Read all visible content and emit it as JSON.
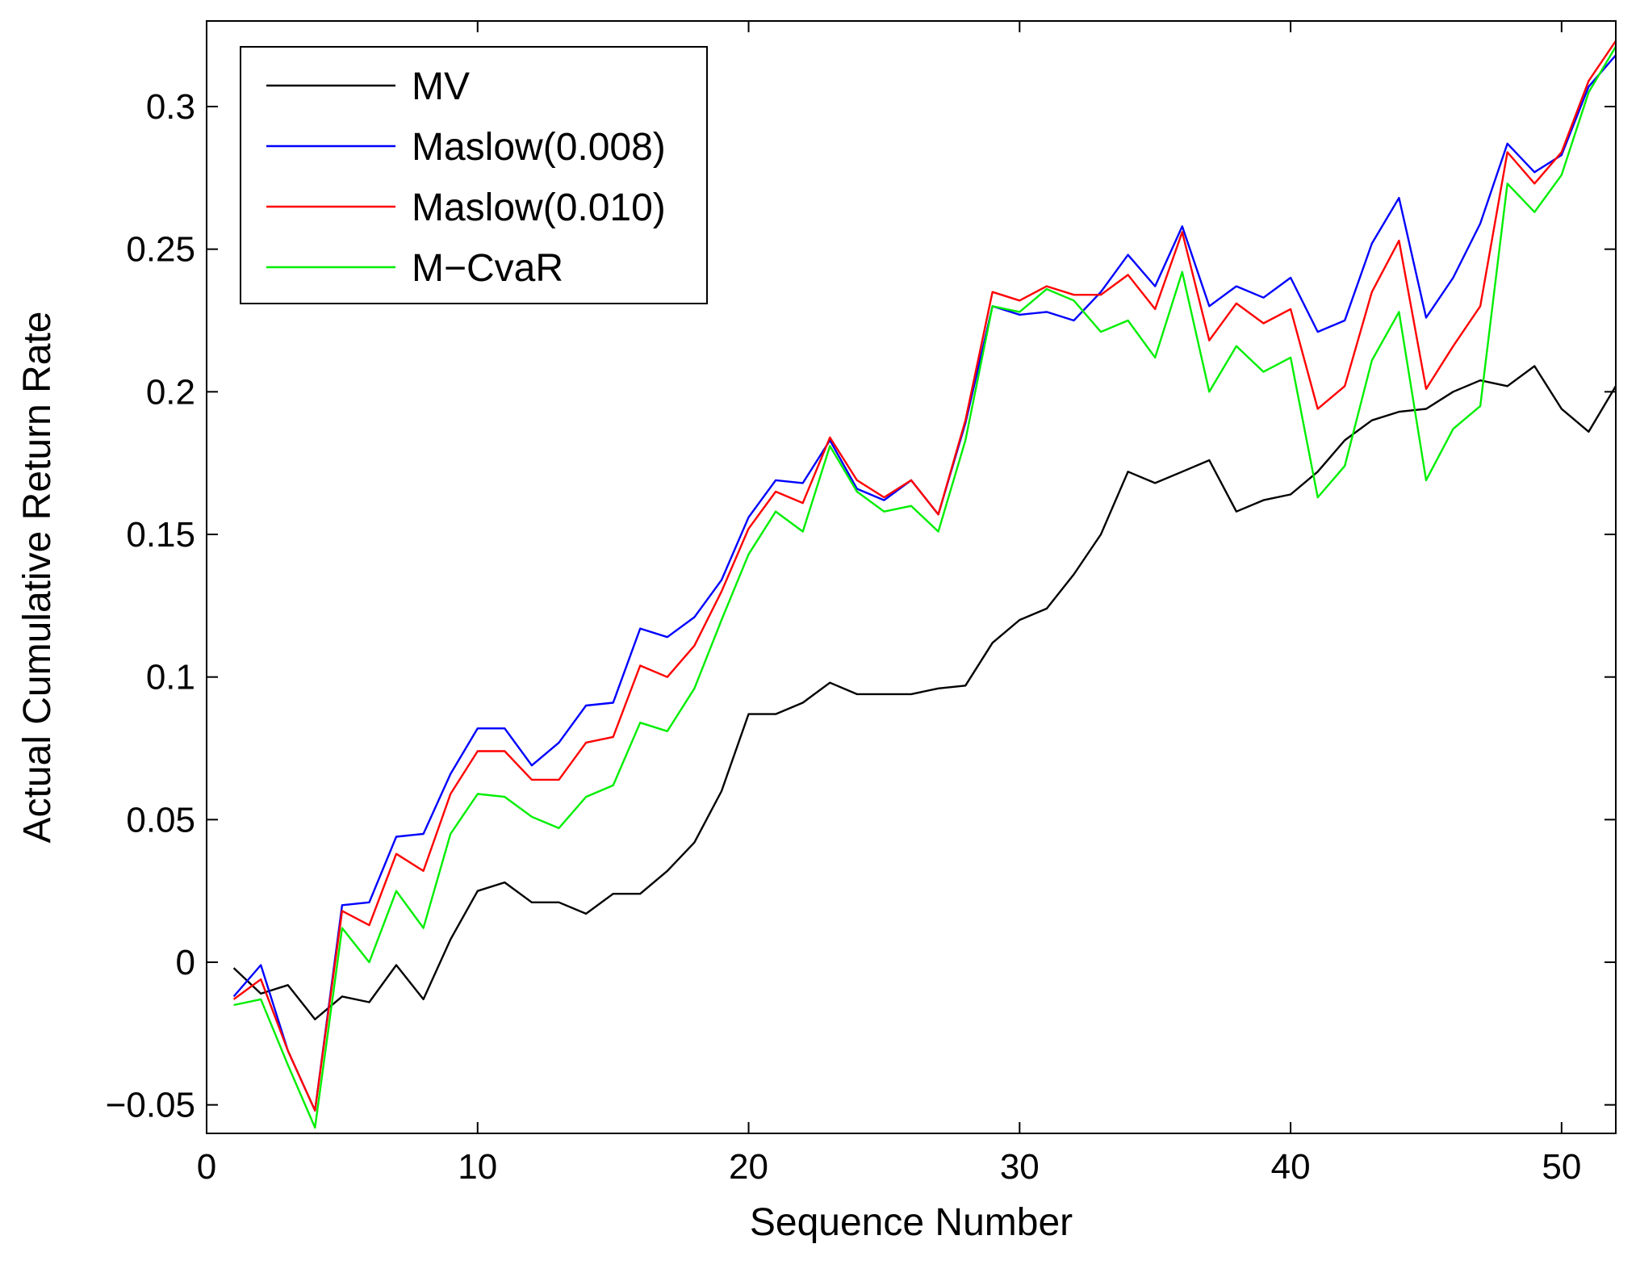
{
  "chart_data": {
    "type": "line",
    "title": "",
    "xlabel": "Sequence Number",
    "ylabel": "Actual Cumulative Return Rate",
    "xlim": [
      0,
      52
    ],
    "ylim": [
      -0.06,
      0.33
    ],
    "xticks": [
      0,
      10,
      20,
      30,
      40,
      50
    ],
    "xtick_labels": [
      "0",
      "10",
      "20",
      "30",
      "40",
      "50"
    ],
    "yticks": [
      -0.05,
      0,
      0.05,
      0.1,
      0.15,
      0.2,
      0.25,
      0.3
    ],
    "ytick_labels": [
      "−0.05",
      "0",
      "0.05",
      "0.1",
      "0.15",
      "0.2",
      "0.25",
      "0.3"
    ],
    "grid": false,
    "legend_position": "top-left",
    "x": [
      1,
      2,
      3,
      4,
      5,
      6,
      7,
      8,
      9,
      10,
      11,
      12,
      13,
      14,
      15,
      16,
      17,
      18,
      19,
      20,
      21,
      22,
      23,
      24,
      25,
      26,
      27,
      28,
      29,
      30,
      31,
      32,
      33,
      34,
      35,
      36,
      37,
      38,
      39,
      40,
      41,
      42,
      43,
      44,
      45,
      46,
      47,
      48,
      49,
      50,
      51,
      52
    ],
    "series": [
      {
        "name": "MV",
        "color": "#000000",
        "values": [
          -0.002,
          -0.011,
          -0.008,
          -0.02,
          -0.012,
          -0.014,
          -0.001,
          -0.013,
          0.008,
          0.025,
          0.028,
          0.021,
          0.021,
          0.017,
          0.024,
          0.024,
          0.032,
          0.042,
          0.06,
          0.087,
          0.087,
          0.091,
          0.098,
          0.094,
          0.094,
          0.094,
          0.096,
          0.097,
          0.112,
          0.12,
          0.124,
          0.136,
          0.15,
          0.172,
          0.168,
          0.172,
          0.176,
          0.158,
          0.162,
          0.164,
          0.172,
          0.183,
          0.19,
          0.193,
          0.194,
          0.2,
          0.204,
          0.202,
          0.209,
          0.194,
          0.186,
          0.202
        ]
      },
      {
        "name": "Maslow(0.008)",
        "color": "#0000ff",
        "values": [
          -0.012,
          -0.001,
          -0.031,
          -0.052,
          0.02,
          0.021,
          0.044,
          0.045,
          0.066,
          0.082,
          0.082,
          0.069,
          0.077,
          0.09,
          0.091,
          0.117,
          0.114,
          0.121,
          0.134,
          0.156,
          0.169,
          0.168,
          0.183,
          0.166,
          0.162,
          0.169,
          0.157,
          0.189,
          0.23,
          0.227,
          0.228,
          0.225,
          0.235,
          0.248,
          0.237,
          0.258,
          0.23,
          0.237,
          0.233,
          0.24,
          0.221,
          0.225,
          0.252,
          0.268,
          0.226,
          0.24,
          0.259,
          0.287,
          0.277,
          0.283,
          0.307,
          0.318
        ]
      },
      {
        "name": "Maslow(0.010)",
        "color": "#ff0000",
        "values": [
          -0.013,
          -0.006,
          -0.031,
          -0.052,
          0.018,
          0.013,
          0.038,
          0.032,
          0.059,
          0.074,
          0.074,
          0.064,
          0.064,
          0.077,
          0.079,
          0.104,
          0.1,
          0.111,
          0.13,
          0.152,
          0.165,
          0.161,
          0.184,
          0.169,
          0.163,
          0.169,
          0.157,
          0.19,
          0.235,
          0.232,
          0.237,
          0.234,
          0.234,
          0.241,
          0.229,
          0.256,
          0.218,
          0.231,
          0.224,
          0.229,
          0.194,
          0.202,
          0.235,
          0.253,
          0.201,
          0.216,
          0.23,
          0.284,
          0.273,
          0.284,
          0.309,
          0.323
        ]
      },
      {
        "name": "M−CvaR",
        "color": "#00ee00",
        "values": [
          -0.015,
          -0.013,
          -0.036,
          -0.058,
          0.012,
          0.0,
          0.025,
          0.012,
          0.045,
          0.059,
          0.058,
          0.051,
          0.047,
          0.058,
          0.062,
          0.084,
          0.081,
          0.096,
          0.12,
          0.143,
          0.158,
          0.151,
          0.181,
          0.165,
          0.158,
          0.16,
          0.151,
          0.183,
          0.23,
          0.228,
          0.236,
          0.232,
          0.221,
          0.225,
          0.212,
          0.242,
          0.2,
          0.216,
          0.207,
          0.212,
          0.163,
          0.174,
          0.211,
          0.228,
          0.169,
          0.187,
          0.195,
          0.273,
          0.263,
          0.276,
          0.305,
          0.321
        ]
      }
    ]
  }
}
